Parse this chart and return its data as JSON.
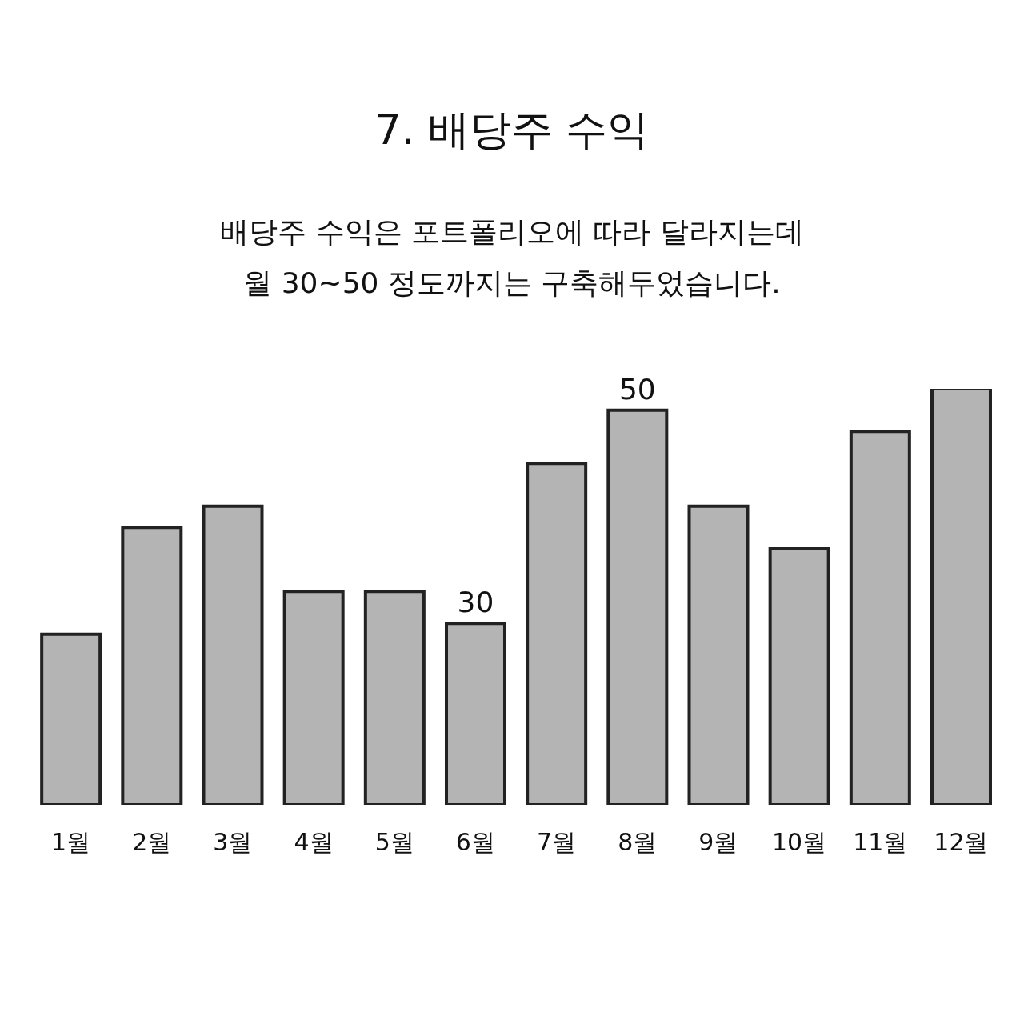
{
  "chart_data": {
    "type": "bar",
    "title": "7. 배당주 수익",
    "subtitle": "배당주 수익은 포트폴리오에 따라 달라지는데\n월 30~50 정도까지는 구축해두었습니다.",
    "categories": [
      "1월",
      "2월",
      "3월",
      "4월",
      "5월",
      "6월",
      "7월",
      "8월",
      "9월",
      "10월",
      "11월",
      "12월"
    ],
    "values": [
      29,
      39,
      41,
      33,
      33,
      30,
      45,
      50,
      41,
      37,
      48,
      52
    ],
    "value_labels": [
      null,
      null,
      null,
      null,
      null,
      "30",
      null,
      "50",
      null,
      null,
      null,
      null
    ],
    "color": "#b4b4b4",
    "ylim": [
      13,
      52
    ],
    "tick_labels": "x"
  }
}
